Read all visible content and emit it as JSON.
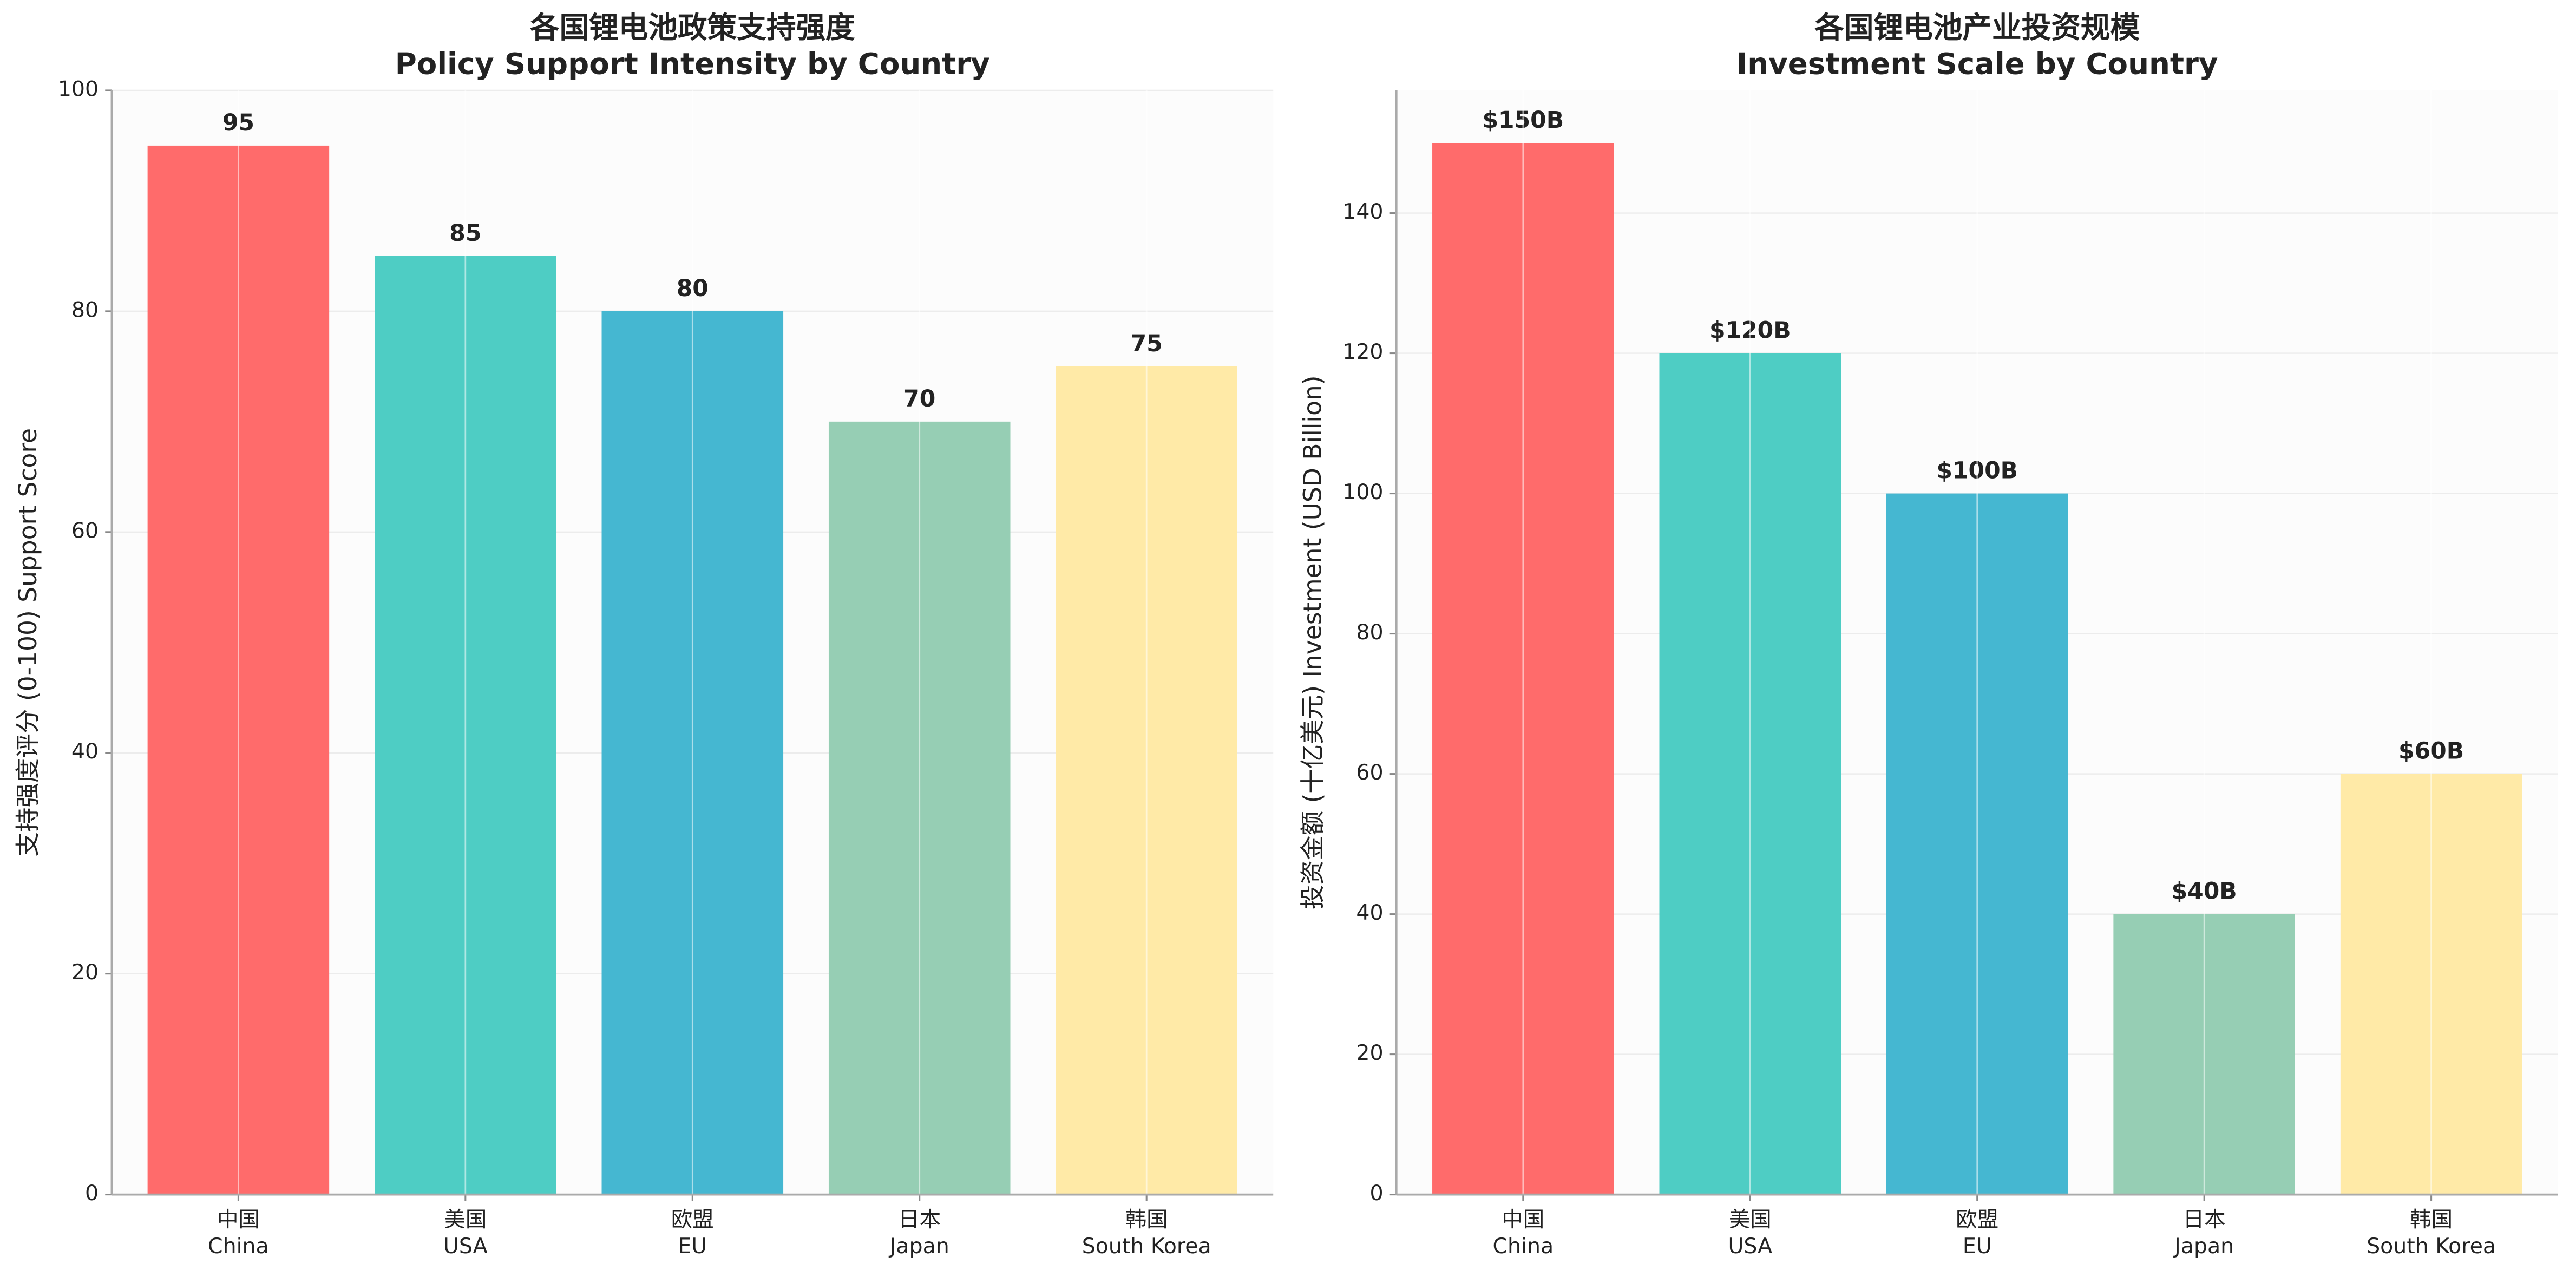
{
  "chart_data": [
    {
      "type": "bar",
      "title": "各国锂电池政策支持强度\nPolicy Support Intensity by Country",
      "ylabel": "支持强度评分 (0-100) Support Score",
      "categories": [
        "中国\nChina",
        "美国\nUSA",
        "欧盟\nEU",
        "日本\nJapan",
        "韩国\nSouth Korea"
      ],
      "values": [
        95,
        85,
        80,
        70,
        75
      ],
      "colors": [
        "#FF6B6B",
        "#4ECDC4",
        "#45B7D1",
        "#96CEB4",
        "#FFEAA7"
      ],
      "ylim": [
        0,
        100
      ],
      "yticks": [
        0,
        20,
        40,
        60,
        80,
        100
      ],
      "grid": true
    },
    {
      "type": "bar",
      "title": "各国锂电池产业投资规模\nInvestment Scale by Country",
      "ylabel": "投资金额 (十亿美元) Investment (USD Billion)",
      "categories": [
        "中国\nChina",
        "美国\nUSA",
        "欧盟\nEU",
        "日本\nJapan",
        "韩国\nSouth Korea"
      ],
      "values": [
        150,
        120,
        100,
        40,
        60
      ],
      "value_labels": [
        "$150B",
        "$120B",
        "$100B",
        "$40B",
        "$60B"
      ],
      "colors": [
        "#FF6B6B",
        "#4ECDC4",
        "#45B7D1",
        "#96CEB4",
        "#FFEAA7"
      ],
      "ylim": [
        0,
        157.5
      ],
      "yticks": [
        0,
        20,
        40,
        60,
        80,
        100,
        120,
        140
      ],
      "grid": true
    }
  ]
}
